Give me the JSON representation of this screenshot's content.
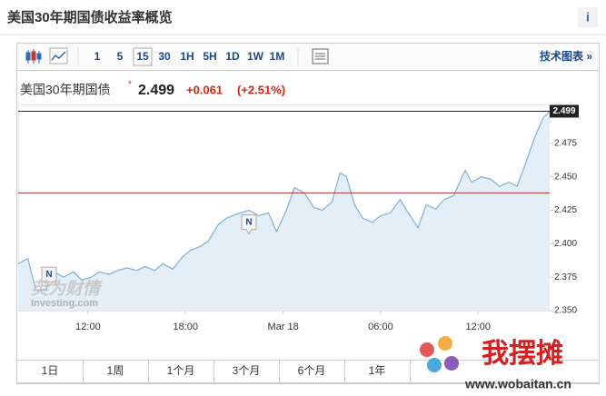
{
  "header": {
    "title": "美国30年期国债收益率概览",
    "info": "i"
  },
  "toolbar": {
    "intervals": [
      "1",
      "5",
      "15",
      "30",
      "1H",
      "5H",
      "1D",
      "1W",
      "1M"
    ],
    "selected": "15",
    "link": "技术图表 »"
  },
  "quote": {
    "name": "美国30年期国债",
    "price": 2.499,
    "change": "+0.061",
    "change_pct": "(+2.51%)"
  },
  "chart_data": {
    "type": "line",
    "x": [
      7.7,
      8.3,
      8.5,
      8.8,
      9.4,
      9.9,
      10.5,
      11.1,
      11.6,
      12.2,
      12.7,
      13.3,
      13.8,
      14.4,
      15.0,
      15.5,
      16.1,
      16.6,
      17.2,
      17.8,
      18.3,
      18.9,
      19.4,
      20.0,
      20.5,
      21.1,
      21.9,
      22.5,
      23.1,
      23.6,
      24.2,
      24.7,
      25.3,
      25.9,
      26.4,
      27.0,
      27.5,
      27.9,
      28.4,
      28.9,
      29.5,
      30.0,
      30.6,
      31.2,
      31.7,
      32.3,
      32.8,
      33.4,
      33.9,
      34.5,
      35.2,
      35.6,
      36.2,
      36.8,
      37.3,
      37.9,
      38.4,
      39.0,
      39.5,
      40.0,
      40.4
    ],
    "series": [
      {
        "name": "美国30年期国债",
        "color": "#7fb0d6",
        "values": [
          2.385,
          2.389,
          2.379,
          2.365,
          2.366,
          2.379,
          2.375,
          2.379,
          2.373,
          2.375,
          2.379,
          2.377,
          2.38,
          2.382,
          2.38,
          2.383,
          2.38,
          2.385,
          2.381,
          2.39,
          2.395,
          2.398,
          2.402,
          2.414,
          2.419,
          2.422,
          2.425,
          2.421,
          2.423,
          2.409,
          2.425,
          2.442,
          2.438,
          2.427,
          2.425,
          2.431,
          2.453,
          2.45,
          2.429,
          2.419,
          2.416,
          2.421,
          2.423,
          2.433,
          2.423,
          2.412,
          2.429,
          2.426,
          2.433,
          2.436,
          2.455,
          2.446,
          2.45,
          2.448,
          2.443,
          2.446,
          2.443,
          2.463,
          2.48,
          2.494,
          2.499
        ]
      }
    ],
    "xlim": [
      7.7,
      40.4
    ],
    "xticks": [
      {
        "value": 12,
        "label": "12:00"
      },
      {
        "value": 18,
        "label": "18:00"
      },
      {
        "value": 24,
        "label": "Mar 18"
      },
      {
        "value": 30,
        "label": "06:00"
      },
      {
        "value": 36,
        "label": "12:00"
      }
    ],
    "ylim": [
      2.35,
      2.5
    ],
    "yticks": [
      {
        "value": 2.35,
        "label": "2.350"
      },
      2.375,
      {
        "value": 2.4,
        "label": "2.400"
      },
      2.425,
      {
        "value": 2.45,
        "label": "2.450"
      },
      2.475
    ],
    "prev_close": 2.438,
    "prev_close_color": "#a83232",
    "annotations": [
      {
        "text": "N",
        "x": 9.6,
        "y": 2.373
      },
      {
        "text": "N",
        "x": 21.9,
        "y": 2.412
      }
    ]
  },
  "ranges": [
    "1日",
    "1周",
    "1个月",
    "3个月",
    "6个月",
    "1年"
  ],
  "watermark": {
    "brand": "英为财情",
    "site": "Investing.com"
  },
  "overlay": {
    "name": "我摆摊",
    "url": "www.wobaitan.cn"
  }
}
